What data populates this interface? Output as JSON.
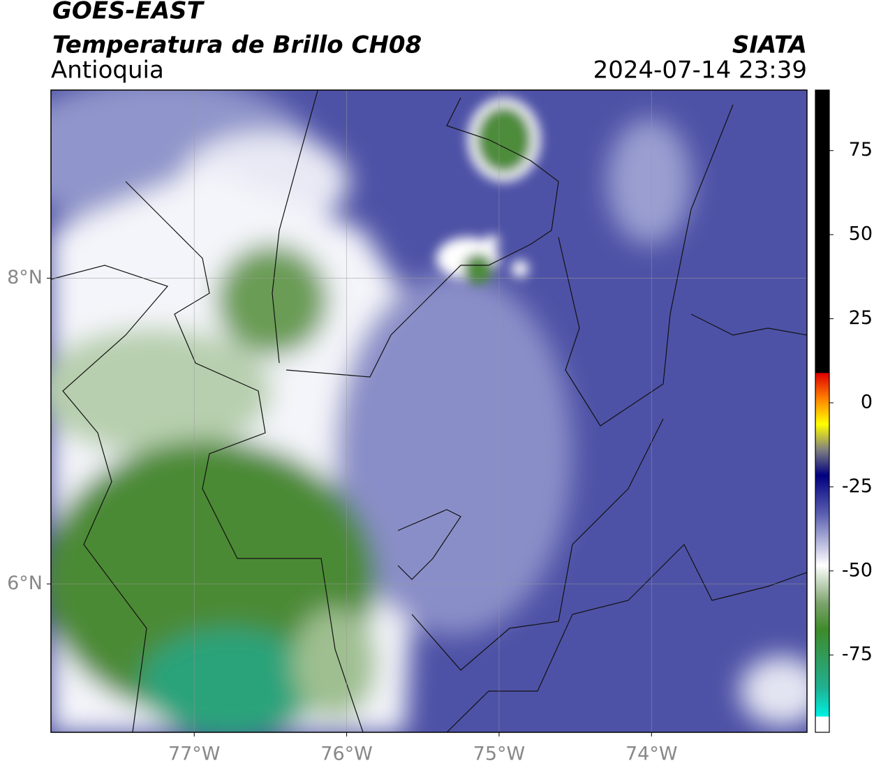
{
  "header": {
    "satellite": "GOES-EAST",
    "product": "Temperatura de Brillo CH08",
    "region": "Antioquia",
    "agency": "SIATA",
    "timestamp": "2024-07-14 23:39"
  },
  "map": {
    "lonlim": [
      -77.94,
      -72.98
    ],
    "latlim": [
      5.03,
      9.23
    ],
    "lonticks": [
      {
        "value": -77,
        "label": "77°W"
      },
      {
        "value": -76,
        "label": "76°W"
      },
      {
        "value": -75,
        "label": "75°W"
      },
      {
        "value": -74,
        "label": "74°W"
      }
    ],
    "latticks": [
      {
        "value": 8,
        "label": "8°N"
      },
      {
        "value": 6,
        "label": "6°N"
      }
    ],
    "grid": true
  },
  "colorbar": {
    "lim": [
      -98,
      93
    ],
    "ticks": [
      75,
      50,
      25,
      0,
      -25,
      -50,
      -75
    ]
  }
}
